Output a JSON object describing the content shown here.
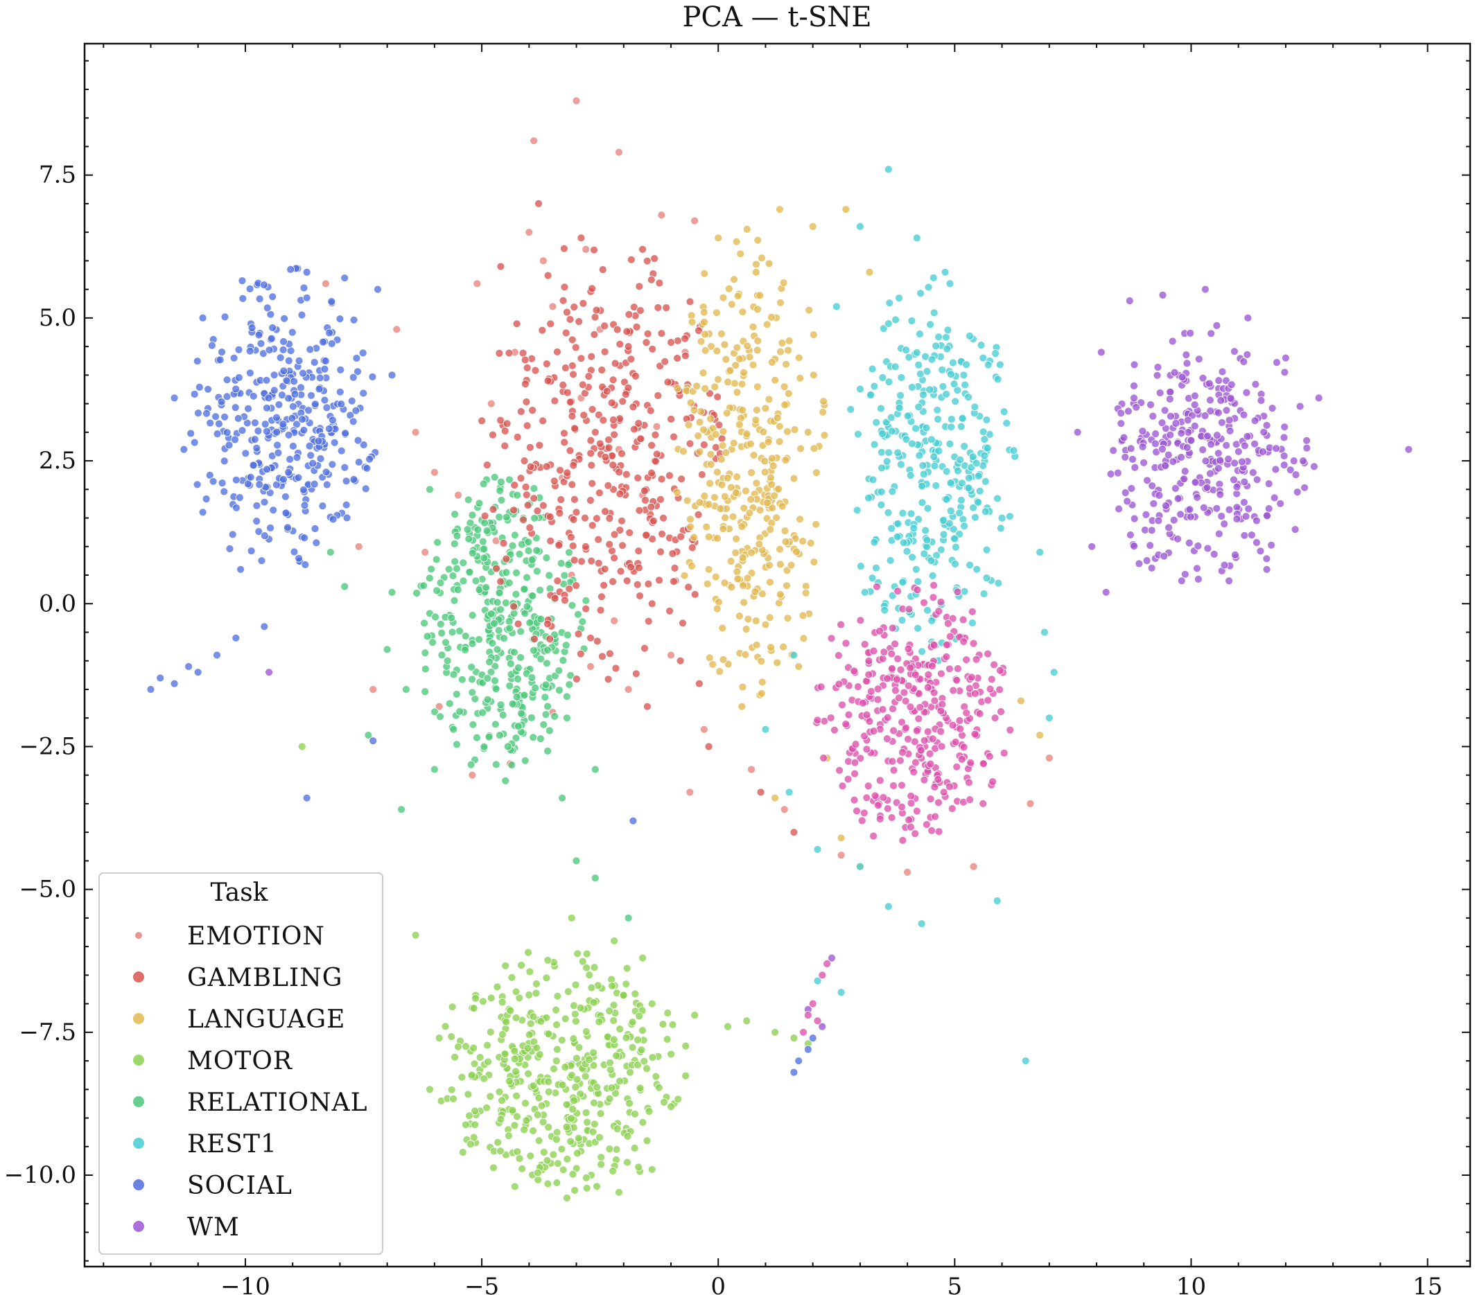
{
  "chart_data": {
    "type": "scatter",
    "title": "PCA — t-SNE",
    "xlabel": "",
    "ylabel": "",
    "xlim": [
      -13.4,
      15.9
    ],
    "ylim": [
      -11.6,
      9.8
    ],
    "x_ticks": [
      -10,
      -5,
      0,
      5,
      10,
      15
    ],
    "x_tick_labels": [
      "−10",
      "−5",
      "0",
      "5",
      "10",
      "15"
    ],
    "y_ticks": [
      7.5,
      5.0,
      2.5,
      0.0,
      -2.5,
      -5.0,
      -7.5,
      -10.0
    ],
    "y_tick_labels": [
      "7.5",
      "5.0",
      "2.5",
      "0.0",
      "−2.5",
      "−5.0",
      "−7.5",
      "−10.0"
    ],
    "grid": false,
    "legend": {
      "title": "Task",
      "placement": "lower-left",
      "entries": [
        "EMOTION",
        "GAMBLING",
        "LANGUAGE",
        "MOTOR",
        "RELATIONAL",
        "REST1",
        "SOCIAL",
        "WM"
      ]
    },
    "series": [
      {
        "name": "EMOTION",
        "color": "#e8837b",
        "points": [
          [
            -4.8,
            3.5
          ],
          [
            -5.5,
            1.9
          ],
          [
            -6.2,
            0.9
          ],
          [
            -3.7,
            6.0
          ],
          [
            -6.8,
            4.8
          ],
          [
            -7.3,
            -1.5
          ],
          [
            -5.2,
            -3.0
          ],
          [
            -6.4,
            3.0
          ],
          [
            -7.6,
            1.0
          ],
          [
            -8.3,
            5.6
          ],
          [
            -3.0,
            8.8
          ],
          [
            -3.9,
            8.1
          ],
          [
            -2.1,
            7.9
          ],
          [
            -1.2,
            6.8
          ],
          [
            -3.5,
            5.2
          ],
          [
            -4.3,
            4.4
          ],
          [
            -2.9,
            3.6
          ],
          [
            -2.1,
            2.7
          ],
          [
            -1.6,
            1.9
          ],
          [
            -3.3,
            2.2
          ],
          [
            -4.7,
            1.1
          ],
          [
            -3.1,
            0.5
          ],
          [
            -2.2,
            -0.3
          ],
          [
            -1.0,
            -0.9
          ],
          [
            -1.9,
            -1.5
          ],
          [
            -2.7,
            -1.1
          ],
          [
            -0.3,
            -2.2
          ],
          [
            0.7,
            -2.9
          ],
          [
            1.4,
            -3.6
          ],
          [
            -0.6,
            -3.3
          ],
          [
            2.6,
            -4.4
          ],
          [
            4.0,
            -4.7
          ],
          [
            5.4,
            -4.6
          ],
          [
            6.6,
            -3.5
          ],
          [
            7.0,
            -2.7
          ],
          [
            -6.0,
            2.3
          ],
          [
            -5.9,
            -1.8
          ],
          [
            -4.4,
            -2.8
          ],
          [
            -3.5,
            -1.9
          ],
          [
            -1.3,
            3.1
          ],
          [
            -0.7,
            4.4
          ],
          [
            -0.9,
            0.4
          ],
          [
            -2.5,
            4.8
          ],
          [
            -5.1,
            5.6
          ],
          [
            -4.0,
            6.5
          ],
          [
            -2.8,
            6.2
          ],
          [
            -0.5,
            6.7
          ]
        ]
      },
      {
        "name": "GAMBLING",
        "color": "#d9534f",
        "cluster": {
          "cx": -2.4,
          "cy": 2.5,
          "rx": 2.5,
          "ry": 3.8,
          "n": 380
        },
        "points": [
          [
            -3.8,
            7.0
          ],
          [
            -2.9,
            6.4
          ],
          [
            -1.6,
            6.2
          ],
          [
            -4.6,
            5.9
          ],
          [
            -3.2,
            5.1
          ],
          [
            -1.9,
            4.5
          ],
          [
            -3.6,
            3.9
          ],
          [
            -2.6,
            3.0
          ],
          [
            -1.7,
            2.2
          ],
          [
            -3.0,
            1.6
          ],
          [
            -2.2,
            0.8
          ],
          [
            -1.4,
            0.0
          ],
          [
            -0.8,
            -1.0
          ],
          [
            -1.5,
            -1.8
          ],
          [
            -0.2,
            -2.5
          ],
          [
            0.9,
            -3.3
          ],
          [
            1.6,
            -4.0
          ],
          [
            -2.7,
            -0.6
          ],
          [
            -3.4,
            0.4
          ],
          [
            -4.1,
            2.5
          ],
          [
            -5.0,
            3.2
          ],
          [
            -0.4,
            -1.4
          ]
        ]
      },
      {
        "name": "LANGUAGE",
        "color": "#e2b84f",
        "cluster": {
          "cx": 0.7,
          "cy": 2.4,
          "rx": 1.6,
          "ry": 4.0,
          "n": 340
        },
        "points": [
          [
            1.3,
            6.9
          ],
          [
            0.0,
            6.4
          ],
          [
            2.0,
            6.6
          ],
          [
            0.8,
            5.8
          ],
          [
            -0.3,
            5.1
          ],
          [
            1.5,
            4.6
          ],
          [
            0.4,
            3.7
          ],
          [
            1.9,
            3.0
          ],
          [
            0.2,
            2.2
          ],
          [
            1.1,
            1.3
          ],
          [
            -0.2,
            0.6
          ],
          [
            0.8,
            -0.3
          ],
          [
            1.7,
            -1.1
          ],
          [
            0.5,
            -1.8
          ],
          [
            2.3,
            -2.7
          ],
          [
            1.2,
            -3.4
          ],
          [
            2.6,
            -4.1
          ],
          [
            3.0,
            -4.6
          ],
          [
            6.4,
            -1.7
          ],
          [
            6.8,
            -2.3
          ],
          [
            2.7,
            6.9
          ],
          [
            3.2,
            5.8
          ]
        ]
      },
      {
        "name": "MOTOR",
        "color": "#8cd150",
        "cluster": {
          "cx": -3.3,
          "cy": -8.2,
          "rx": 2.6,
          "ry": 2.1,
          "n": 420
        },
        "points": [
          [
            -3.1,
            -5.5
          ],
          [
            -2.2,
            -5.9
          ],
          [
            -1.6,
            -6.2
          ],
          [
            -1.4,
            -7.0
          ],
          [
            -4.8,
            -6.9
          ],
          [
            -5.9,
            -7.6
          ],
          [
            -6.1,
            -8.5
          ],
          [
            -5.4,
            -9.6
          ],
          [
            -4.3,
            -10.2
          ],
          [
            -3.2,
            -10.4
          ],
          [
            -2.1,
            -10.3
          ],
          [
            -1.4,
            -9.9
          ],
          [
            -1.0,
            -8.8
          ],
          [
            -0.5,
            -7.2
          ],
          [
            0.2,
            -7.4
          ],
          [
            0.6,
            -7.3
          ],
          [
            1.2,
            -7.5
          ],
          [
            1.6,
            -7.6
          ],
          [
            1.9,
            -7.7
          ],
          [
            -8.8,
            -2.5
          ],
          [
            -6.4,
            -5.8
          ]
        ]
      },
      {
        "name": "RELATIONAL",
        "color": "#4cc87a",
        "cluster": {
          "cx": -4.6,
          "cy": -0.4,
          "rx": 1.8,
          "ry": 2.5,
          "n": 380
        },
        "points": [
          [
            -6.1,
            2.0
          ],
          [
            -5.3,
            1.3
          ],
          [
            -4.3,
            1.2
          ],
          [
            -6.9,
            0.2
          ],
          [
            -6.6,
            -1.5
          ],
          [
            -5.6,
            -2.2
          ],
          [
            -4.5,
            -3.1
          ],
          [
            -3.3,
            -3.4
          ],
          [
            -2.6,
            -2.9
          ],
          [
            -3.2,
            -2.0
          ],
          [
            -4.1,
            -1.6
          ],
          [
            -5.2,
            -0.7
          ],
          [
            -6.0,
            -2.9
          ],
          [
            -7.9,
            0.3
          ],
          [
            -8.2,
            0.9
          ],
          [
            -7.4,
            -2.3
          ],
          [
            -7.0,
            -0.8
          ],
          [
            -6.7,
            -3.6
          ],
          [
            -3.0,
            -4.5
          ],
          [
            -2.6,
            -4.8
          ],
          [
            -1.9,
            -5.5
          ]
        ]
      },
      {
        "name": "REST1",
        "color": "#47cdd2",
        "cluster": {
          "cx": 4.5,
          "cy": 2.4,
          "rx": 1.7,
          "ry": 3.3,
          "n": 330
        },
        "points": [
          [
            3.6,
            7.6
          ],
          [
            4.2,
            6.4
          ],
          [
            3.0,
            6.6
          ],
          [
            2.5,
            5.2
          ],
          [
            3.6,
            4.9
          ],
          [
            4.9,
            5.6
          ],
          [
            5.6,
            4.3
          ],
          [
            2.8,
            3.4
          ],
          [
            4.1,
            2.8
          ],
          [
            5.3,
            2.2
          ],
          [
            6.0,
            1.5
          ],
          [
            6.8,
            0.9
          ],
          [
            6.9,
            -0.5
          ],
          [
            7.1,
            -1.2
          ],
          [
            7.0,
            -2.0
          ],
          [
            3.8,
            1.4
          ],
          [
            3.1,
            0.2
          ],
          [
            1.6,
            -0.9
          ],
          [
            1.0,
            -2.2
          ],
          [
            1.5,
            -3.3
          ],
          [
            2.1,
            -4.3
          ],
          [
            3.0,
            -4.6
          ],
          [
            3.6,
            -5.3
          ],
          [
            4.3,
            -5.6
          ],
          [
            5.9,
            -5.2
          ],
          [
            6.5,
            -8.0
          ],
          [
            2.1,
            -6.6
          ],
          [
            2.6,
            -6.8
          ]
        ]
      },
      {
        "name": "SOCIAL",
        "color": "#4f6fe0",
        "cluster": {
          "cx": -9.2,
          "cy": 3.2,
          "rx": 1.9,
          "ry": 2.6,
          "n": 360
        },
        "points": [
          [
            -8.7,
            5.8
          ],
          [
            -7.9,
            5.7
          ],
          [
            -7.2,
            5.5
          ],
          [
            -6.9,
            4.0
          ],
          [
            -10.9,
            5.0
          ],
          [
            -11.5,
            3.6
          ],
          [
            -11.3,
            2.7
          ],
          [
            -10.9,
            1.6
          ],
          [
            -10.1,
            0.6
          ],
          [
            -9.6,
            -0.4
          ],
          [
            -10.2,
            -0.6
          ],
          [
            -10.6,
            -0.9
          ],
          [
            -11.0,
            -1.2
          ],
          [
            -11.5,
            -1.4
          ],
          [
            -12.0,
            -1.5
          ],
          [
            -11.8,
            -1.3
          ],
          [
            -11.2,
            -1.1
          ],
          [
            -8.7,
            -3.4
          ],
          [
            -7.3,
            -2.4
          ],
          [
            -1.8,
            -3.8
          ],
          [
            1.6,
            -8.2
          ],
          [
            1.7,
            -8.0
          ],
          [
            1.9,
            -7.8
          ],
          [
            2.0,
            -7.6
          ]
        ]
      },
      {
        "name": "WM",
        "color": "#9b56d4",
        "cluster": {
          "cx": 10.3,
          "cy": 2.6,
          "rx": 2.1,
          "ry": 2.2,
          "n": 330
        },
        "points": [
          [
            8.7,
            5.3
          ],
          [
            9.4,
            5.4
          ],
          [
            10.3,
            5.5
          ],
          [
            11.2,
            5.0
          ],
          [
            12.0,
            4.3
          ],
          [
            12.7,
            3.6
          ],
          [
            12.6,
            2.4
          ],
          [
            12.2,
            1.3
          ],
          [
            11.6,
            0.6
          ],
          [
            10.8,
            0.4
          ],
          [
            9.8,
            0.4
          ],
          [
            8.9,
            0.7
          ],
          [
            8.2,
            0.2
          ],
          [
            7.9,
            1.0
          ],
          [
            7.6,
            3.0
          ],
          [
            8.1,
            4.4
          ],
          [
            14.6,
            2.7
          ],
          [
            1.9,
            -7.1
          ],
          [
            2.2,
            -7.4
          ],
          [
            -9.5,
            -1.2
          ],
          [
            2.4,
            -6.2
          ]
        ]
      }
    ]
  }
}
